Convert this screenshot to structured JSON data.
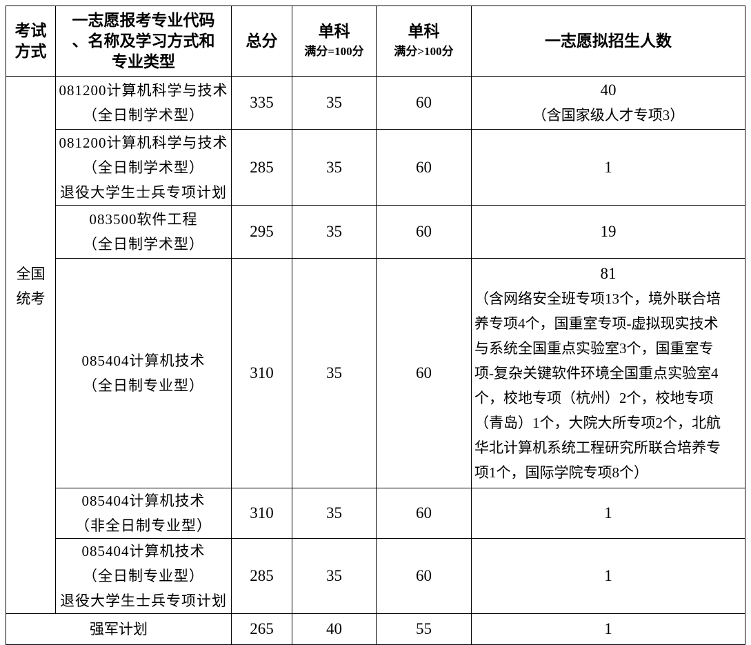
{
  "headers": {
    "exam_mode": [
      "考试",
      "方式"
    ],
    "major": [
      "一志愿报考专业代码",
      "、名称及学习方式和",
      "专业类型"
    ],
    "total": "总分",
    "single_100": {
      "title": "单科",
      "sub": "满分=100分"
    },
    "single_gt100": {
      "title": "单科",
      "sub": "满分>100分"
    },
    "quota": "一志愿拟招生人数"
  },
  "exam_mode_group": [
    "全国",
    "统考"
  ],
  "rows": [
    {
      "major": [
        "081200计算机科学与技术",
        "（全日制学术型）"
      ],
      "total": "335",
      "s100": "35",
      "sgt100": "60",
      "quota": [
        "40",
        "（含国家级人才专项3）"
      ]
    },
    {
      "major": [
        "081200计算机科学与技术",
        "（全日制学术型）",
        "退役大学生士兵专项计划"
      ],
      "total": "285",
      "s100": "35",
      "sgt100": "60",
      "quota": [
        "1"
      ]
    },
    {
      "major": [
        "083500软件工程",
        "（全日制学术型）"
      ],
      "total": "295",
      "s100": "35",
      "sgt100": "60",
      "quota": [
        "19"
      ]
    },
    {
      "major": [
        "085404计算机技术",
        "（全日制专业型）"
      ],
      "total": "310",
      "s100": "35",
      "sgt100": "60",
      "quota": [
        "81",
        "（含网络安全班专项13个，境外联合培",
        "养专项4个，国重室专项-虚拟现实技术",
        "与系统全国重点实验室3个，国重室专",
        "项-复杂关键软件环境全国重点实验室4",
        "个，校地专项（杭州）2个，校地专项",
        "（青岛）1个，大院大所专项2个，北航",
        "华北计算机系统工程研究所联合培养专",
        "项1个，国际学院专项8个）"
      ]
    },
    {
      "major": [
        "085404计算机技术",
        "（非全日制专业型）"
      ],
      "total": "310",
      "s100": "35",
      "sgt100": "60",
      "quota": [
        "1"
      ]
    },
    {
      "major": [
        "085404计算机技术",
        "（全日制专业型）",
        "退役大学生士兵专项计划"
      ],
      "total": "285",
      "s100": "35",
      "sgt100": "60",
      "quota": [
        "1"
      ]
    }
  ],
  "footer_row": {
    "label": "强军计划",
    "total": "265",
    "s100": "40",
    "sgt100": "55",
    "quota": "1"
  }
}
